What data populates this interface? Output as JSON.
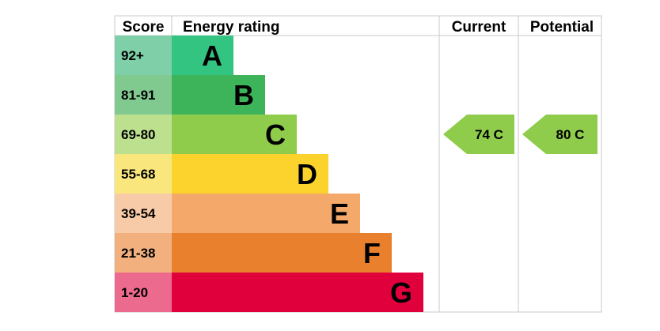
{
  "chart_data": {
    "type": "bar",
    "headers": {
      "score": "Score",
      "rating": "Energy rating",
      "current": "Current",
      "potential": "Potential"
    },
    "bands": [
      {
        "score": "92+",
        "letter": "A",
        "bar_color": "#33c481",
        "score_color": "#7fcfa8",
        "min": 92
      },
      {
        "score": "81-91",
        "letter": "B",
        "bar_color": "#3db45a",
        "score_color": "#80c98f",
        "min": 81
      },
      {
        "score": "69-80",
        "letter": "C",
        "bar_color": "#8fcc4c",
        "score_color": "#bde08f",
        "min": 69
      },
      {
        "score": "55-68",
        "letter": "D",
        "bar_color": "#fbd32c",
        "score_color": "#f9e67d",
        "min": 55
      },
      {
        "score": "39-54",
        "letter": "E",
        "bar_color": "#f4a96b",
        "score_color": "#f8cba8",
        "min": 39
      },
      {
        "score": "21-38",
        "letter": "F",
        "bar_color": "#e9802d",
        "score_color": "#f2b07e",
        "min": 21
      },
      {
        "score": "1-20",
        "letter": "G",
        "bar_color": "#e0003c",
        "score_color": "#eb6a8d",
        "min": 1
      }
    ],
    "current": {
      "value": 74,
      "letter": "C",
      "label": "74  C",
      "color": "#8fcc4c"
    },
    "potential": {
      "value": 80,
      "letter": "C",
      "label": "80  C",
      "color": "#8fcc4c"
    }
  }
}
